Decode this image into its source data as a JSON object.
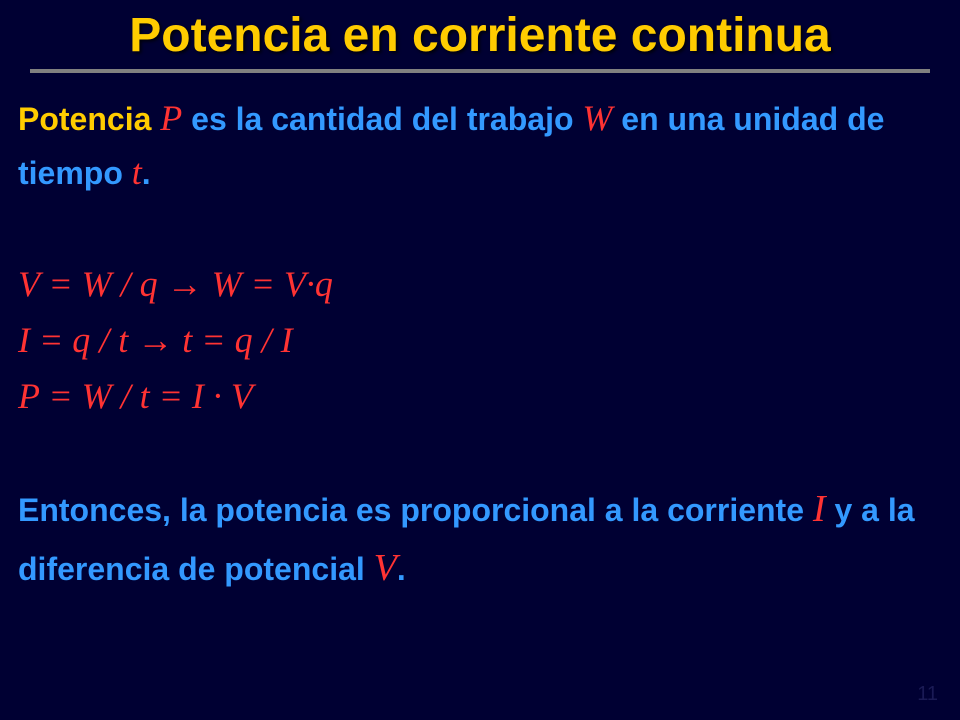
{
  "title": "Potencia en corriente continua",
  "para1": {
    "topic": "Potencia",
    "seg1": " ",
    "P": "P",
    "seg2": " es la cantidad del trabajo ",
    "W": "W",
    "seg3": " en una unidad de tiempo ",
    "t": "t",
    "seg4": "."
  },
  "equations": {
    "line1": "V = W / q  →  W = V·q",
    "line2": "I = q / t      →  t = q / I",
    "line3": "P = W / t = I · V"
  },
  "para2": {
    "seg1": "Entonces, la potencia es proporcional a la corriente ",
    "I": "I",
    "seg2": " y a la diferencia de potencial ",
    "V": "V",
    "seg3": "."
  },
  "pagenum": "11"
}
